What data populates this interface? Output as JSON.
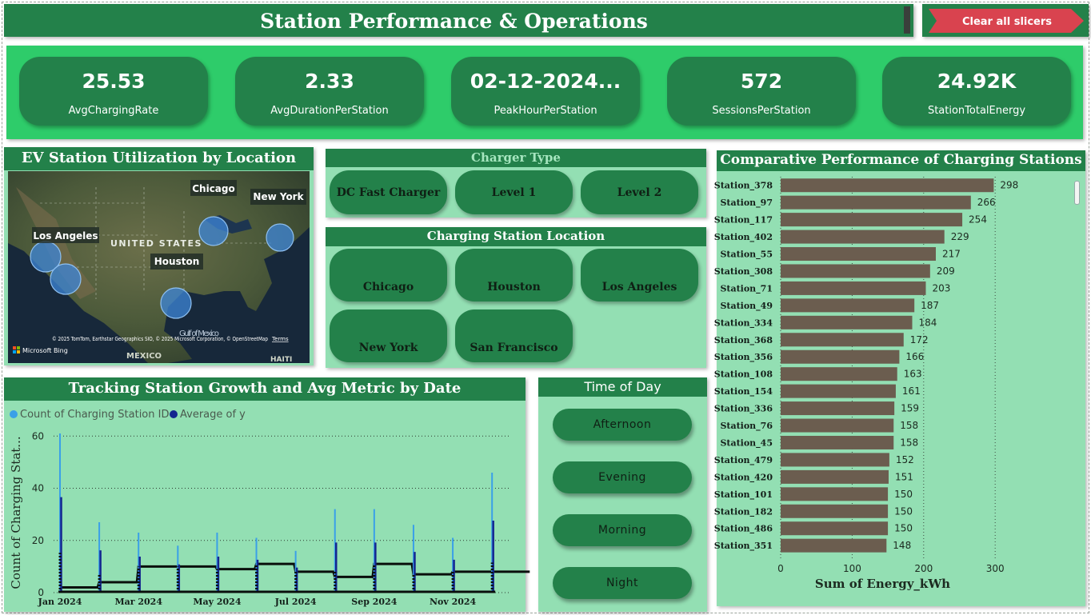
{
  "header": {
    "title": "Station Performance & Operations",
    "clear_button": "Clear all slicers"
  },
  "kpis": [
    {
      "value": "25.53",
      "label": "AvgChargingRate"
    },
    {
      "value": "2.33",
      "label": "AvgDurationPerStation"
    },
    {
      "value": "02-12-2024...",
      "label": "PeakHourPerStation"
    },
    {
      "value": "572",
      "label": "SessionsPerStation"
    },
    {
      "value": "24.92K",
      "label": "StationTotalEnergy"
    }
  ],
  "map": {
    "title": "EV Station Utilization by Location",
    "labels": {
      "chicago": "Chicago",
      "new_york": "New York",
      "los_angeles": "Los Angeles",
      "houston": "Houston",
      "country": "UNITED STATES",
      "gulf": "Gulf of Mexico",
      "mexico": "MEXICO",
      "haiti": "HAITI"
    },
    "attribution": "© 2025 TomTom, Earthstar Geographics SIO, © 2025 Microsoft Corporation, © OpenStreetMap",
    "terms": "Terms",
    "bing": "Microsoft Bing"
  },
  "charger_type": {
    "title": "Charger Type",
    "options": [
      "DC Fast Charger",
      "Level 1",
      "Level 2"
    ]
  },
  "station_location": {
    "title": "Charging Station Location",
    "options": [
      "Chicago",
      "Houston",
      "Los Angeles",
      "New York",
      "San Francisco"
    ]
  },
  "time_of_day": {
    "title": "Time of Day",
    "options": [
      "Afternoon",
      "Evening",
      "Morning",
      "Night"
    ]
  },
  "colors": {
    "dark_green": "#23814a",
    "bright_green": "#2ecc6a",
    "panel_green": "#93dfb3",
    "bar_brown": "#6b5d4f",
    "red_button": "#d9434f",
    "series_count": "#3aa0e8",
    "series_avg": "#14258f"
  },
  "chart_data": [
    {
      "type": "bar",
      "title": "Comparative Performance of Charging Stations",
      "orientation": "horizontal",
      "categories": [
        "Station_378",
        "Station_97",
        "Station_117",
        "Station_402",
        "Station_55",
        "Station_308",
        "Station_71",
        "Station_49",
        "Station_334",
        "Station_368",
        "Station_356",
        "Station_108",
        "Station_154",
        "Station_336",
        "Station_76",
        "Station_45",
        "Station_479",
        "Station_420",
        "Station_101",
        "Station_182",
        "Station_486",
        "Station_351"
      ],
      "values": [
        298,
        266,
        254,
        229,
        217,
        209,
        203,
        187,
        184,
        172,
        166,
        163,
        161,
        159,
        158,
        158,
        152,
        151,
        150,
        150,
        150,
        148
      ],
      "xlabel": "Sum of Energy_kWh",
      "xlim": [
        0,
        330
      ],
      "xticks": [
        0,
        100,
        200,
        300
      ],
      "grid": true
    },
    {
      "type": "line",
      "title": "Tracking Station Growth and Avg Metric by Date",
      "ylabel": "Count of Charging Stat...",
      "xlabel": "",
      "ylim": [
        0,
        65
      ],
      "yticks": [
        0,
        20,
        40,
        60
      ],
      "xticks": [
        "Jan 2024",
        "Mar 2024",
        "May 2024",
        "Jul 2024",
        "Sep 2024",
        "Nov 2024"
      ],
      "legend": "top-left",
      "series": [
        {
          "name": "Count of Charging Station ID",
          "x": [
            "2024-01-01",
            "2024-02-01",
            "2024-03-01",
            "2024-04-01",
            "2024-05-01",
            "2024-06-01",
            "2024-07-01",
            "2024-08-01",
            "2024-09-01",
            "2024-10-01",
            "2024-11-01",
            "2024-12-01"
          ],
          "values": [
            61,
            27,
            23,
            18,
            23,
            21,
            16,
            32,
            32,
            26,
            21,
            46
          ]
        },
        {
          "name": "Average of y",
          "x": [
            "2024-01-01",
            "2024-02-01",
            "2024-03-01",
            "2024-04-01",
            "2024-05-01",
            "2024-06-01",
            "2024-07-01",
            "2024-08-01",
            "2024-09-01",
            "2024-10-01",
            "2024-11-01",
            "2024-12-01"
          ],
          "values": [
            2,
            4,
            10,
            10,
            9,
            11,
            8,
            6,
            11,
            7,
            8,
            8
          ]
        }
      ]
    }
  ]
}
